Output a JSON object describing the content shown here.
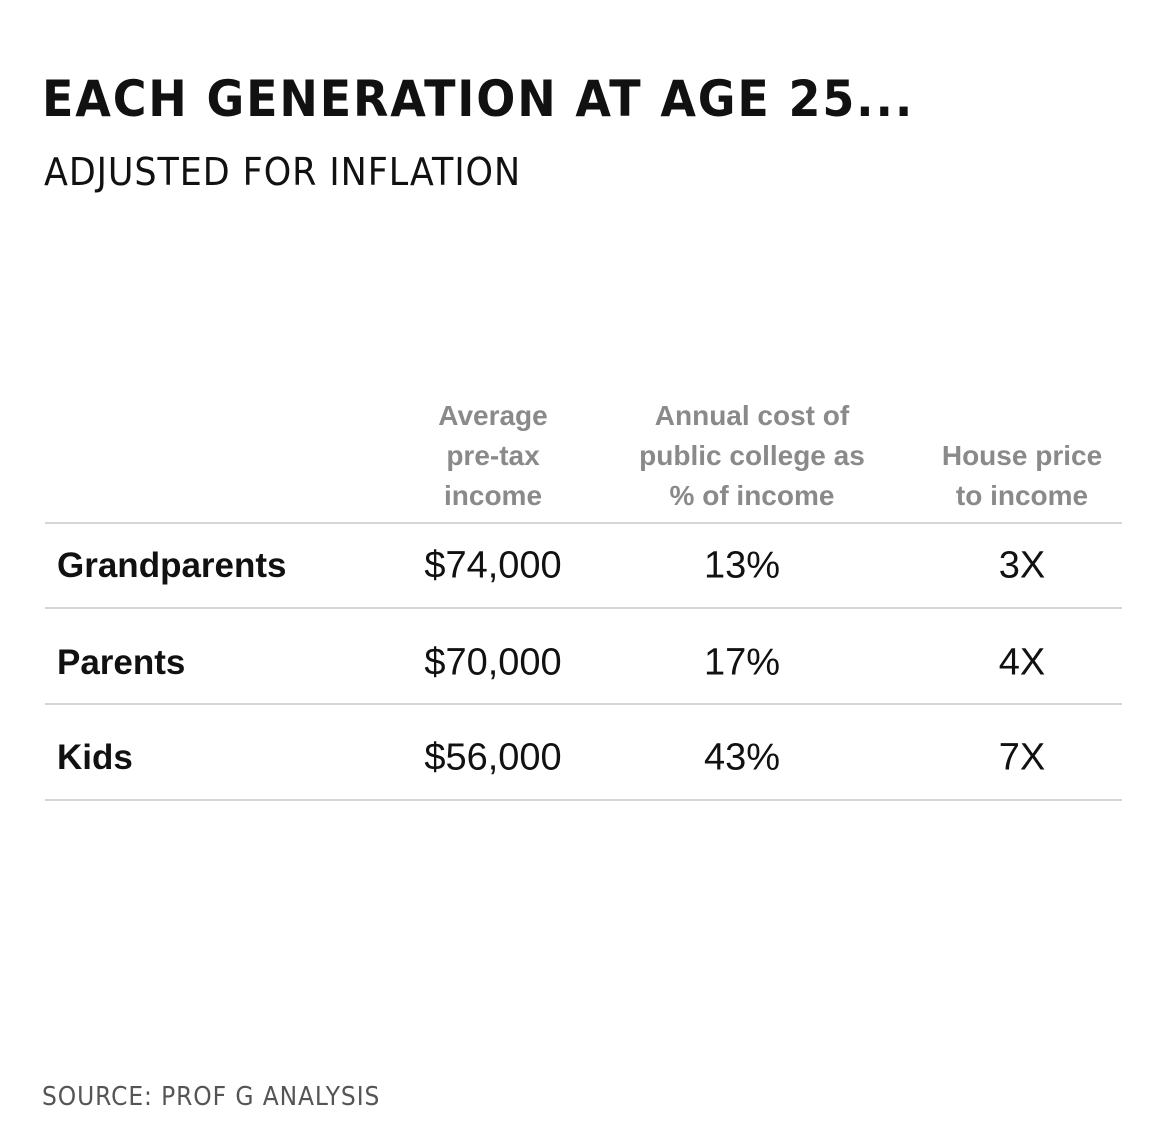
{
  "header": {
    "title": "EACH GENERATION AT AGE 25...",
    "subtitle": "ADJUSTED FOR INFLATION"
  },
  "table": {
    "columns": [
      [
        "Average",
        "pre-tax",
        "income"
      ],
      [
        "Annual cost of",
        "public college as",
        "% of income"
      ],
      [
        "House price",
        "to income"
      ]
    ],
    "rows": [
      [
        "Grandparents",
        "$74,000",
        "13%",
        "3X"
      ],
      [
        "Parents",
        "$70,000",
        "17%",
        "4X"
      ],
      [
        "Kids",
        "$56,000",
        "43%",
        "7X"
      ]
    ]
  },
  "footer": {
    "source": "SOURCE: PROF G ANALYSIS"
  }
}
